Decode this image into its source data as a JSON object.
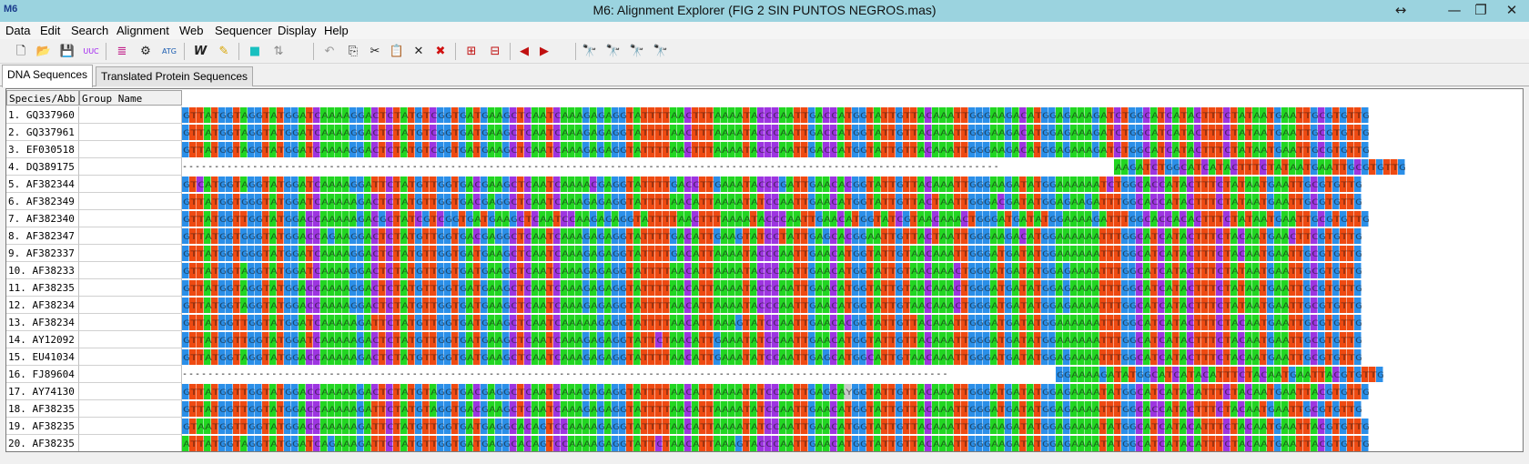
{
  "window": {
    "app_icon": "M6",
    "title": "M6: Alignment Explorer (FIG 2 SIN  PUNTOS NEGROS.mas)",
    "controls": [
      "↔",
      "—",
      "❐",
      "✕"
    ]
  },
  "menu": [
    "Data",
    "Edit",
    "Search",
    "Alignment",
    "Web",
    "Sequencer",
    "Display",
    "Help"
  ],
  "toolbar_icons": [
    "new-file-icon",
    "open-folder-icon",
    "save-icon",
    "translate-icon",
    "align-clustal-icon",
    "align-muscle-icon",
    "align-codons-icon",
    "web-query-icon",
    "blast-icon",
    "mark-site-icon",
    "move-site-icon",
    "undo-icon",
    "copy-icon",
    "cut-icon",
    "paste-icon",
    "delete-icon",
    "delete-gap-columns-icon",
    "insert-blank-icon",
    "insert-gap-icon",
    "previous-site-icon",
    "next-site-icon",
    "find-motif-icon",
    "find-previous-icon",
    "find-next-icon",
    "highlight-motif-icon"
  ],
  "tabs": [
    "DNA Sequences",
    "Translated Protein Sequences"
  ],
  "columns": {
    "species": "Species/Abb",
    "group": "Group Name"
  },
  "consensus": "                                                                                                                                                                                          ** **  ***** ** ** ** ** *****  * ***** **",
  "colors": {
    "A": "#22d622",
    "T": "#ee4a12",
    "C": "#9d35e0",
    "G": "#2b8fe8",
    "Y": "#c8c8c8"
  },
  "sequences": [
    {
      "label": "1.  GQ337960",
      "seq": "GTTATGGTAGGTATGGATCAAAAGGACTCTATGTCGGTGATGAAGCTCAATCAAAGAGAGGTATTTTAACTTTAAAATACCCAATTGACCATGGTATTGTTACAAATTGGGAAGACATGGAGAAAGATCTGGCATCATACTTTCTATAATGAATTGCGTGTTG"
    },
    {
      "label": "2.  GQ337961",
      "seq": "GTTATGGTAGGTATGGATCAAAAGGACTCTATGTCGGTGATGAAGCTCAATCAAAGAGAGGTATTTTAACTTTAAAATACCCAATTGACCATGGTATTGTTACAAATTGGGAAGACATGGAGAAAGATCTGGCATCATACTTTCTATAATGAATTGCGTGTTG"
    },
    {
      "label": "3.  EF030518",
      "seq": "GTTATGGTAGGTATGGATCAAAAGGACTCTATGTCGGTGATGAAGCTCAATCAAAGAGAGGTATTTTAACTTTAAAATACCCAATTGACCATGGTATTGTTACAAATTGGGAAGACATGGAGAAAGATCTGGCATCATACTTTCTATAATGAATTGCGTGTTG"
    },
    {
      "label": "4.  DQ389175",
      "seq": "--------------------------------------------------------------------------------------------------------------------------------AAGATCTGGCATCATACTTTCTATAATGAATTGCGTGTTG"
    },
    {
      "label": "5.  AF382344",
      "seq": "GTCATGGTAGGTATGGATCAAAAGGATTCTATGTTGGTGACGAAGCTCAATCAAAACGAGGTATTTTGACCTTGAAATACCCGATTGAACACGGTATTGTTACAAATTGGGAAGATATGGAAAAAATCTGGCACCATACTTTCTATAATGAATTGCGTGTTG"
    },
    {
      "label": "6.  AF382349",
      "seq": "GTTATGGTGGGTATGGATCAAAAAGACTCTATGTTGGTGACGAGGCTCAATCAAAGAGAGGTATTTTAACATTAAAATATCCAATTGAACATGGTATTGTTACTAATTGGGACGATATGGAGAAGATTTGGCACCATACTTTCTATAATGAATTGCGTGTTG"
    },
    {
      "label": "7.  AF382340",
      "seq": "GTTATGGTTGGTATGGACCAAAAAGACGCTATCGTCGGTGATGAAGCTCAATCCAAGAGAGGTATTTTAACTTTAAAATACCCAATTGAACATGGTATCGTAACAAACTGGGATGATATGGAAAAGATTTGGCACCACACTTTCTATAATGAATTGCGTGTTG"
    },
    {
      "label": "8.  AF382347",
      "seq": "GTTATGGTGGGTATGGACCAGAAGGACTCTATGTTGGTGACGAGGCTCAATCAAAGAGAGGTATTTTGACATTGAAGTATCCTATTGAGCACGGAATTGTTACTAATTGGGAAGACATGGAAAAAATTTGGCATCATACTTTCTACAATGAACTTCGTGTTG"
    },
    {
      "label": "9.  AF382337",
      "seq": "GTTATGGTGGGTATGGATCAAAAGGACTCTATGTTGGTGATGAAGCTCAATCAAAGAGAGGTATTTTGACATTAAAATACCCAATTGAACATGGTATTGTAACAAATTGGGATGATATGGAAAAAATTTGGCATCATACTTTCTACAATGAATTGCGTGTTG"
    },
    {
      "label": "10. AF38233",
      "seq": "GTTATGGTAGGTATGGATCAAAAGGACTCTATGTTGGTGATGAAGCTCAATCAAAGAGAGGTATTTTAACATTAAAATACCCAATTGAACATGGTATTGTAACAAACTGGGATGATATGGAGAAAATTTGGCATCATACTTTCTATAATGAATTGCGTGTTG"
    },
    {
      "label": "11. AF38235",
      "seq": "GTTATGGTAGGTATGGACCAAAAGGACTCTATGTTGGTGATGAAGCTCAATCAAAGAGAGGTATTTTAACATTAAAATACCCAATTGAACATGGTATTGTAACAAACTGGGATGATATGGAGAAAATTTGGCATCATACTTTCTATAATGAATTGCGTGTTG"
    },
    {
      "label": "12. AF38234",
      "seq": "GTTATGGTAGGTATGGACCAAAAGGACTCTATGTTGGTGATGAAGCTCAATCAAAGAGAGGTATTTTAACATTAAAATACCCAATTGAACATGGTATTGTAACAAACTGGGATGATATGGAGAAAATTTGGCATCATACTTTCTATAATGAATTGCGTGTTG"
    },
    {
      "label": "13. AF38234",
      "seq": "GTTATGGTTGGTATGGATCAAAAAGATTCTATGTTGGTGATGAAGCTCAATCAAAAAGAGGTATTTTAACATTAAAGTATCCAATTGAACACGGTATTGTTACAAATTGGGATGATATGGAAAAAATTTGGCATCATACTTTCTACAATGAATTGCGTGTTG"
    },
    {
      "label": "14. AY12092",
      "seq": "GTTATGGTTGGTATGGATCAAAAAGACTCTATGTTGGTGATGAAGCTCAATCAAAGAGAGGTATTCTAACATTGAAATATCCAATTGAACATGGTATTGTTACAAATTGGGATGATATGGAAAAAATTTGGCATCATACTTTCTACAATGAATTGCGTGTTG"
    },
    {
      "label": "15. EU41034",
      "seq": "GTTATGGTAGGTATGGACCAAAAAGACTCTATGTTGGTGATGAAGCTCAATCAAAGAGAGGTATTTTAACATTGAAATATCCAATTGAGCATGGCATTGTAACAAATTGGGATGATATGGAGAAAATTTGGCATCATACTTTCTACAATGAATTGCGTGTTG"
    },
    {
      "label": "16. FJ89604",
      "seq": "------------------------------------------------------------------------------------------------------------------------GGAAAAGATATGGCATCATACATTTCTACAATGAATTACGTGTTG"
    },
    {
      "label": "17. AY74130",
      "seq": "GTTATGGTTGGTATGGACCAAAAAGACTCTATGTAGGTGACGAGGCTCAATCAAAGAGAGGTATTTTAACATTAAAATATCCAATTGAGCAYGGTATTGTTACAAATTGGGATGATATGGAGAAAATATGGCATCATACATTTCTACAATGAATTACGTGTTG"
    },
    {
      "label": "18. AF38235",
      "seq": "GTTATGGTTGGTATGGACCAAAAAGATTCTATGTAGGTGACGAAGCTCAATCAAAGAGAGGTATTTTAACATTAAAATATCCAATTGAACATGGTATTGTTACAAATTGGGATGATATGGAGAAAATTTGGCACCATACTTTCTACAATGAATTGCGTGTTG"
    },
    {
      "label": "19. AF38235",
      "seq": "GTAATGGTTGGTATGGACCAAAAAGATTCTATGTTGGTGATGAGGCACAGTCCAAAAGAGGTATTTTAACATTAAAATATCCAATTGAACATGGTATTGTTACAAATTGGGAAGATATGGAGAAAATATGGCATCATACATTTCTACAATGAATTACGTGTTG"
    },
    {
      "label": "20. AF38235",
      "seq": "ATTATGGTAGGTATGGATCAGAAAGATTCTATGTTGGTGATGAGGCACAGTCCAAAAGAGGTATTCTAACATTAAAGTACCCAATTGAACATGGTATTGTTACAAATTGGGAAGATATGGAGAAAATATGGCATCATACATTTCTACAATGAATTACGTGTTG"
    }
  ]
}
